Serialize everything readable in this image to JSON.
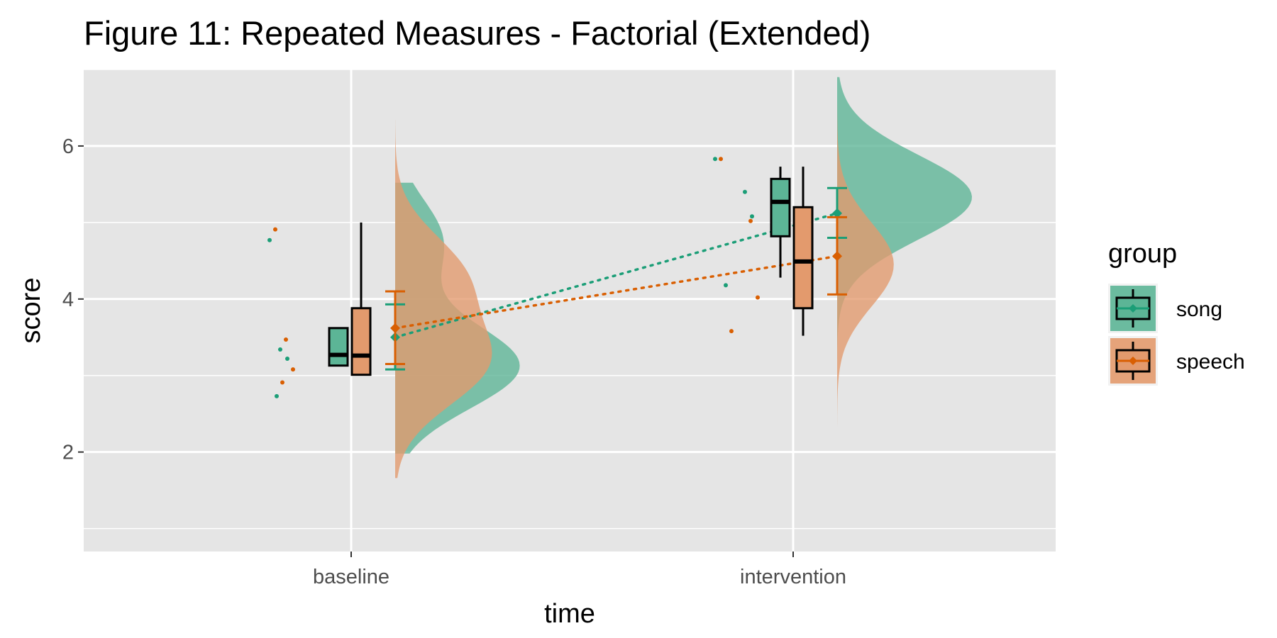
{
  "chart_data": {
    "type": "raincloud",
    "title": "Figure 11: Repeated Measures - Factorial (Extended)",
    "xlabel": "time",
    "ylabel": "score",
    "ylim": [
      0.7,
      7.0
    ],
    "yticks": [
      2,
      4,
      6
    ],
    "categories": [
      "baseline",
      "intervention"
    ],
    "grid": true,
    "legend": {
      "title": "group",
      "position": "right"
    },
    "series": [
      {
        "name": "song",
        "color": "#1b9e77",
        "fill": "#5cb596",
        "points": {
          "baseline": [
            4.77,
            3.34,
            3.22,
            2.73
          ],
          "intervention": [
            5.83,
            5.4,
            5.08,
            4.18
          ]
        },
        "box": {
          "baseline": {
            "min": 3.13,
            "q1": 3.13,
            "median": 3.27,
            "q3": 3.62,
            "max": 3.62
          },
          "intervention": {
            "min": 4.28,
            "q1": 4.82,
            "median": 5.27,
            "q3": 5.57,
            "max": 5.73
          }
        },
        "mean": {
          "baseline": 3.5,
          "intervention": 5.12
        },
        "ci": {
          "baseline": [
            3.08,
            3.93
          ],
          "intervention": [
            4.8,
            5.45
          ]
        },
        "density": {
          "baseline": {
            "range": [
              1.98,
              5.52
            ],
            "peaks": [
              [
                3.12,
                0.92
              ],
              [
                4.75,
                0.35
              ]
            ]
          },
          "intervention": {
            "range": [
              3.12,
              6.9
            ],
            "peaks": [
              [
                5.33,
                1.0
              ]
            ]
          }
        }
      },
      {
        "name": "speech",
        "color": "#d95f02",
        "fill": "#e39a6d",
        "points": {
          "baseline": [
            4.91,
            3.47,
            3.08,
            2.91
          ],
          "intervention": [
            5.83,
            5.02,
            4.02,
            3.58
          ]
        },
        "box": {
          "baseline": {
            "min": 3.01,
            "q1": 3.01,
            "median": 3.26,
            "q3": 3.88,
            "max": 5.0
          },
          "intervention": {
            "min": 3.52,
            "q1": 3.88,
            "median": 4.49,
            "q3": 5.2,
            "max": 5.73
          }
        },
        "mean": {
          "baseline": 3.62,
          "intervention": 4.56
        },
        "ci": {
          "baseline": [
            3.15,
            4.1
          ],
          "intervention": [
            4.06,
            5.07
          ]
        },
        "density": {
          "baseline": {
            "range": [
              1.66,
              6.34
            ],
            "peaks": [
              [
                3.15,
                0.65
              ],
              [
                4.3,
                0.48
              ]
            ]
          },
          "intervention": {
            "range": [
              1.5,
              7.0
            ],
            "peaks": [
              [
                4.45,
                0.42
              ]
            ]
          }
        }
      }
    ]
  }
}
